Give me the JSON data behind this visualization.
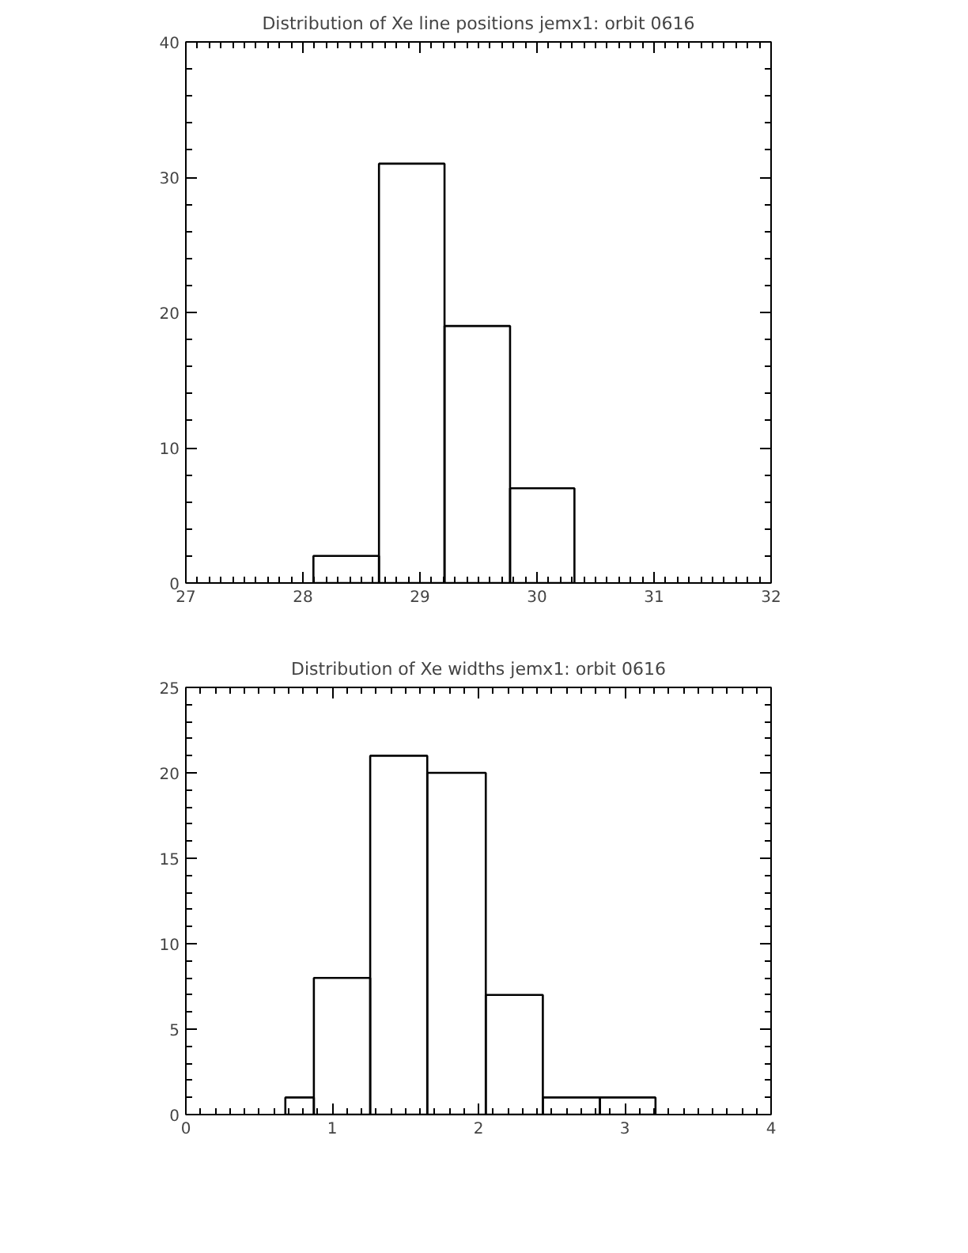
{
  "chart_data": [
    {
      "type": "histogram",
      "title": "Distribution of Xe line positions jemx1: orbit 0616",
      "bins": [
        28.09,
        28.65,
        29.21,
        29.77,
        30.32
      ],
      "values": [
        2,
        31,
        19,
        7
      ],
      "color": "#000000",
      "xlim": [
        27,
        32
      ],
      "xticks": [
        27,
        28,
        29,
        30,
        31,
        32
      ],
      "ylim": [
        0,
        40
      ],
      "yticks": [
        0,
        10,
        20,
        30,
        40
      ],
      "grid": false
    },
    {
      "type": "histogram",
      "title": "Distribution of Xe widths jemx1: orbit 0616",
      "bins": [
        0.68,
        0.875,
        1.26,
        1.65,
        2.05,
        2.44,
        2.83,
        3.21
      ],
      "values": [
        1,
        8,
        21,
        20,
        7,
        1,
        1
      ],
      "color": "#000000",
      "xlim": [
        0,
        4
      ],
      "xticks": [
        0,
        1,
        2,
        3,
        4
      ],
      "ylim": [
        0,
        25
      ],
      "yticks": [
        0,
        5,
        10,
        15,
        20,
        25
      ],
      "grid": false
    }
  ]
}
